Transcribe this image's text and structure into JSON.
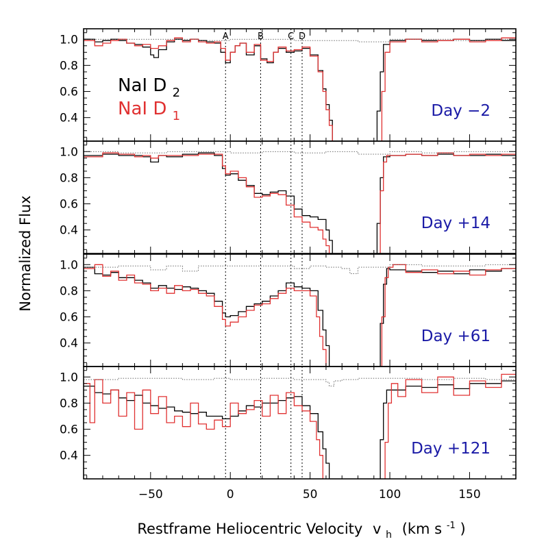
{
  "chart_data": {
    "type": "line",
    "xlabel": "Restframe Heliocentric Velocity",
    "xlabel_var": "v",
    "xlabel_sub": "h",
    "xlabel_units": "(km s",
    "xlabel_units_sup": "-1",
    "xlabel_units_close": ")",
    "ylabel": "Normalized Flux",
    "xlim": [
      -92,
      179
    ],
    "ylim": [
      0.22,
      1.08
    ],
    "xticks": [
      -50,
      0,
      50,
      100,
      150
    ],
    "xtick_labels": [
      "−50",
      "0",
      "50",
      "100",
      "150"
    ],
    "yticks": [
      0.4,
      0.6,
      0.8,
      1.0
    ],
    "ytick_labels": [
      "0.4",
      "0.6",
      "0.8",
      "1.0"
    ],
    "legend": {
      "placement": "top-left of first panel",
      "entries": [
        {
          "name": "NaI D",
          "sub": "2",
          "color": "#000000"
        },
        {
          "name": "NaI D",
          "sub": "1",
          "color": "#e03030"
        }
      ]
    },
    "components": [
      {
        "label": "A",
        "v": -3
      },
      {
        "label": "B",
        "v": 19
      },
      {
        "label": "C",
        "v": 38
      },
      {
        "label": "D",
        "v": 45
      }
    ],
    "colors": {
      "d2": "#000000",
      "d1": "#e03030",
      "telluric": "#555555",
      "day_label": "#1a1aa6"
    },
    "panels": [
      {
        "day_label": "Day −2",
        "series": [
          {
            "name": "NaI D2",
            "x": [
              -92,
              -85,
              -80,
              -75,
              -70,
              -65,
              -60,
              -55,
              -50,
              -48,
              -45,
              -40,
              -35,
              -30,
              -25,
              -20,
              -15,
              -10,
              -6,
              -3,
              0,
              3,
              6,
              10,
              15,
              19,
              23,
              27,
              30,
              35,
              40,
              45,
              50,
              55,
              58,
              60,
              62,
              64,
              90,
              92,
              94,
              96,
              100,
              110,
              120,
              130,
              140,
              150,
              160,
              170,
              179
            ],
            "y": [
              1.0,
              0.98,
              0.99,
              1.0,
              0.99,
              0.97,
              0.96,
              0.94,
              0.88,
              0.86,
              0.92,
              0.98,
              1.0,
              0.99,
              1.0,
              0.99,
              0.98,
              0.97,
              0.9,
              0.82,
              0.9,
              0.95,
              0.97,
              0.88,
              0.95,
              0.85,
              0.82,
              0.9,
              0.93,
              0.9,
              0.91,
              0.93,
              0.88,
              0.76,
              0.62,
              0.5,
              0.38,
              0.2,
              0.2,
              0.45,
              0.75,
              0.96,
              0.99,
              1.0,
              0.99,
              0.99,
              1.0,
              0.99,
              1.0,
              0.99,
              1.0
            ]
          },
          {
            "name": "NaI D1",
            "x": [
              -92,
              -85,
              -80,
              -75,
              -70,
              -65,
              -60,
              -55,
              -50,
              -45,
              -40,
              -35,
              -30,
              -25,
              -20,
              -15,
              -10,
              -6,
              -3,
              0,
              3,
              6,
              10,
              15,
              19,
              23,
              27,
              30,
              35,
              40,
              45,
              50,
              55,
              58,
              60,
              62,
              64,
              93,
              95,
              97,
              100,
              110,
              120,
              130,
              140,
              150,
              160,
              170,
              179
            ],
            "y": [
              0.99,
              0.95,
              0.97,
              0.99,
              1.0,
              0.97,
              0.95,
              0.96,
              0.93,
              0.95,
              0.99,
              1.01,
              0.98,
              1.0,
              0.98,
              0.97,
              0.98,
              0.93,
              0.84,
              0.9,
              0.95,
              0.97,
              0.9,
              0.96,
              0.84,
              0.83,
              0.9,
              0.94,
              0.91,
              0.92,
              0.94,
              0.87,
              0.75,
              0.6,
              0.46,
              0.34,
              0.2,
              0.2,
              0.6,
              0.9,
              0.98,
              1.0,
              0.98,
              0.99,
              1.0,
              0.98,
              0.99,
              1.01,
              0.99
            ]
          },
          {
            "name": "telluric",
            "x": [
              -92,
              -70,
              -40,
              -20,
              0,
              20,
              40,
              60,
              80,
              100,
              120,
              140,
              160,
              179
            ],
            "y": [
              1.0,
              1.0,
              1.0,
              0.99,
              1.0,
              1.0,
              0.99,
              0.99,
              0.98,
              1.0,
              1.0,
              0.99,
              1.0,
              1.0
            ]
          }
        ]
      },
      {
        "day_label": "Day +14",
        "series": [
          {
            "name": "NaI D2",
            "x": [
              -92,
              -80,
              -70,
              -60,
              -55,
              -50,
              -45,
              -40,
              -30,
              -20,
              -10,
              -5,
              -3,
              0,
              5,
              10,
              15,
              20,
              25,
              30,
              35,
              40,
              45,
              50,
              55,
              60,
              62,
              64,
              90,
              92,
              94,
              96,
              100,
              110,
              120,
              130,
              140,
              150,
              160,
              170,
              179
            ],
            "y": [
              0.97,
              0.98,
              0.97,
              0.97,
              0.96,
              0.92,
              0.97,
              0.96,
              0.98,
              0.99,
              0.97,
              0.87,
              0.82,
              0.83,
              0.78,
              0.74,
              0.68,
              0.67,
              0.69,
              0.7,
              0.66,
              0.56,
              0.51,
              0.5,
              0.48,
              0.4,
              0.32,
              0.2,
              0.2,
              0.45,
              0.8,
              0.96,
              0.97,
              0.98,
              0.97,
              0.98,
              0.97,
              0.97,
              0.98,
              0.97,
              0.97
            ]
          },
          {
            "name": "NaI D1",
            "x": [
              -92,
              -80,
              -70,
              -60,
              -55,
              -50,
              -45,
              -40,
              -30,
              -20,
              -10,
              -5,
              -3,
              0,
              5,
              10,
              15,
              20,
              25,
              30,
              35,
              40,
              45,
              50,
              55,
              58,
              60,
              62,
              92,
              94,
              96,
              98,
              100,
              110,
              120,
              130,
              140,
              150,
              160,
              170,
              179
            ],
            "y": [
              0.96,
              0.99,
              0.98,
              0.96,
              0.97,
              0.95,
              0.97,
              0.97,
              0.97,
              0.98,
              0.98,
              0.89,
              0.83,
              0.85,
              0.8,
              0.73,
              0.65,
              0.66,
              0.68,
              0.67,
              0.59,
              0.5,
              0.46,
              0.42,
              0.4,
              0.33,
              0.28,
              0.2,
              0.2,
              0.7,
              0.92,
              0.97,
              0.97,
              0.98,
              0.97,
              0.99,
              0.97,
              0.98,
              0.97,
              0.98,
              0.97
            ]
          },
          {
            "name": "telluric",
            "x": [
              -92,
              -70,
              -40,
              -20,
              0,
              20,
              40,
              60,
              80,
              100,
              120,
              140,
              160,
              179
            ],
            "y": [
              1.0,
              0.99,
              1.0,
              1.0,
              0.99,
              1.0,
              0.99,
              1.0,
              0.98,
              1.0,
              0.99,
              1.0,
              1.0,
              0.99
            ]
          }
        ]
      },
      {
        "day_label": "Day +61",
        "series": [
          {
            "name": "NaI D2",
            "x": [
              -92,
              -85,
              -80,
              -75,
              -70,
              -65,
              -60,
              -55,
              -50,
              -45,
              -40,
              -35,
              -30,
              -25,
              -20,
              -15,
              -10,
              -5,
              -3,
              0,
              5,
              10,
              15,
              20,
              25,
              30,
              35,
              40,
              45,
              50,
              55,
              58,
              60,
              62,
              92,
              94,
              96,
              98,
              100,
              110,
              120,
              130,
              140,
              150,
              160,
              170,
              179
            ],
            "y": [
              0.98,
              0.93,
              0.92,
              0.94,
              0.9,
              0.9,
              0.88,
              0.86,
              0.82,
              0.84,
              0.82,
              0.81,
              0.83,
              0.82,
              0.8,
              0.78,
              0.72,
              0.63,
              0.6,
              0.61,
              0.64,
              0.68,
              0.7,
              0.72,
              0.76,
              0.8,
              0.86,
              0.83,
              0.82,
              0.8,
              0.65,
              0.5,
              0.38,
              0.2,
              0.2,
              0.55,
              0.85,
              0.97,
              0.96,
              0.95,
              0.94,
              0.95,
              0.93,
              0.96,
              0.95,
              0.97,
              0.98
            ]
          },
          {
            "name": "NaI D1",
            "x": [
              -92,
              -85,
              -80,
              -75,
              -70,
              -65,
              -60,
              -55,
              -50,
              -45,
              -40,
              -35,
              -30,
              -25,
              -20,
              -15,
              -10,
              -5,
              -3,
              0,
              5,
              10,
              15,
              20,
              25,
              30,
              35,
              40,
              45,
              50,
              54,
              56,
              58,
              60,
              93,
              95,
              97,
              99,
              102,
              110,
              120,
              130,
              140,
              150,
              160,
              170,
              179
            ],
            "y": [
              0.97,
              1.0,
              0.91,
              0.95,
              0.88,
              0.92,
              0.86,
              0.85,
              0.8,
              0.82,
              0.78,
              0.84,
              0.8,
              0.81,
              0.78,
              0.76,
              0.68,
              0.58,
              0.53,
              0.56,
              0.6,
              0.65,
              0.69,
              0.7,
              0.74,
              0.78,
              0.82,
              0.8,
              0.8,
              0.76,
              0.6,
              0.45,
              0.35,
              0.2,
              0.2,
              0.6,
              0.9,
              0.98,
              1.0,
              0.94,
              0.96,
              0.93,
              0.95,
              0.92,
              0.96,
              0.97,
              0.99
            ]
          },
          {
            "name": "telluric",
            "x": [
              -92,
              -70,
              -50,
              -40,
              -30,
              -20,
              0,
              20,
              40,
              50,
              60,
              70,
              75,
              80,
              100,
              120,
              140,
              160,
              179
            ],
            "y": [
              0.98,
              0.99,
              0.96,
              0.99,
              0.95,
              0.99,
              0.99,
              0.99,
              0.97,
              0.99,
              0.98,
              0.97,
              0.93,
              0.98,
              1.0,
              0.99,
              0.99,
              1.0,
              0.99
            ]
          }
        ]
      },
      {
        "day_label": "Day +121",
        "series": [
          {
            "name": "NaI D2",
            "x": [
              -92,
              -85,
              -80,
              -75,
              -70,
              -65,
              -60,
              -55,
              -50,
              -45,
              -40,
              -35,
              -30,
              -25,
              -20,
              -15,
              -10,
              -5,
              0,
              5,
              10,
              15,
              20,
              25,
              30,
              35,
              40,
              45,
              50,
              55,
              58,
              60,
              62,
              92,
              94,
              96,
              98,
              100,
              110,
              120,
              130,
              140,
              150,
              160,
              170,
              179
            ],
            "y": [
              0.93,
              0.88,
              0.87,
              0.9,
              0.84,
              0.82,
              0.86,
              0.8,
              0.78,
              0.76,
              0.77,
              0.74,
              0.73,
              0.72,
              0.73,
              0.7,
              0.7,
              0.68,
              0.7,
              0.74,
              0.78,
              0.77,
              0.8,
              0.8,
              0.82,
              0.84,
              0.85,
              0.78,
              0.72,
              0.58,
              0.45,
              0.34,
              0.2,
              0.2,
              0.52,
              0.8,
              0.9,
              0.9,
              0.93,
              0.92,
              0.94,
              0.91,
              0.95,
              0.95,
              0.97,
              0.98
            ]
          },
          {
            "name": "NaI D1",
            "x": [
              -92,
              -88,
              -85,
              -80,
              -75,
              -70,
              -65,
              -60,
              -55,
              -50,
              -45,
              -40,
              -35,
              -30,
              -25,
              -20,
              -15,
              -10,
              -5,
              0,
              5,
              10,
              15,
              20,
              25,
              30,
              35,
              40,
              45,
              50,
              54,
              56,
              58,
              95,
              97,
              99,
              101,
              105,
              110,
              120,
              130,
              140,
              150,
              160,
              170,
              179
            ],
            "y": [
              0.95,
              0.65,
              0.98,
              0.8,
              0.9,
              0.7,
              0.88,
              0.6,
              0.9,
              0.72,
              0.85,
              0.65,
              0.7,
              0.62,
              0.8,
              0.64,
              0.6,
              0.67,
              0.62,
              0.8,
              0.72,
              0.75,
              0.82,
              0.7,
              0.86,
              0.72,
              0.88,
              0.78,
              0.74,
              0.66,
              0.52,
              0.4,
              0.2,
              0.2,
              0.5,
              0.8,
              0.95,
              0.85,
              0.98,
              0.88,
              1.0,
              0.86,
              0.97,
              0.92,
              1.02,
              0.96
            ]
          },
          {
            "name": "telluric",
            "x": [
              -92,
              -70,
              -50,
              -30,
              -10,
              0,
              20,
              40,
              55,
              60,
              62,
              65,
              70,
              80,
              100,
              120,
              140,
              160,
              179
            ],
            "y": [
              0.98,
              0.99,
              0.99,
              0.98,
              0.99,
              0.98,
              0.99,
              0.98,
              0.98,
              0.96,
              0.93,
              0.97,
              0.98,
              0.99,
              0.99,
              0.98,
              0.99,
              0.98,
              0.99
            ]
          }
        ]
      }
    ]
  }
}
